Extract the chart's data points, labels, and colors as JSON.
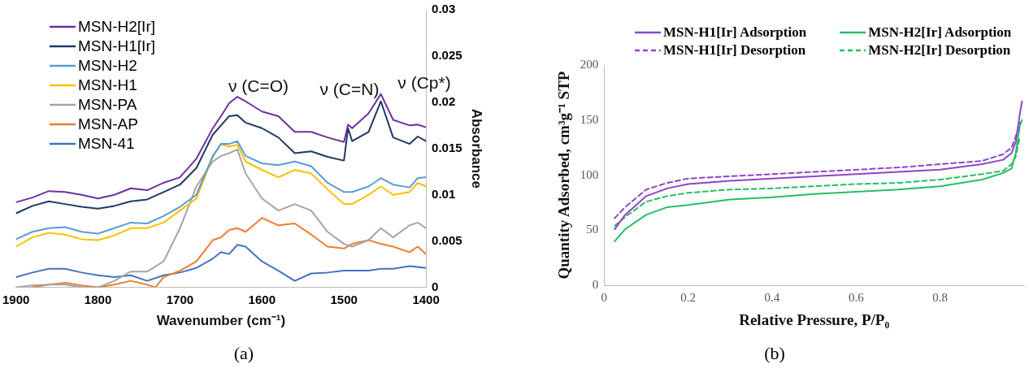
{
  "chart_data": [
    {
      "type": "line",
      "xlabel": "Wavenumber (cm⁻¹)",
      "ylabel": "Absorbance",
      "xlim": [
        1900,
        1400
      ],
      "xticks": [
        1900,
        1800,
        1700,
        1600,
        1500,
        1400
      ],
      "ylim": [
        0,
        0.03
      ],
      "yticks": [
        0,
        0.005,
        0.01,
        0.015,
        0.02,
        0.025,
        0.03
      ],
      "legend": "top left",
      "marker": "none",
      "grid": false,
      "annotations": [
        "ν (C=O)",
        "ν (C=N)",
        "ν (Cp*)",
        "(a)"
      ],
      "series": [
        {
          "name": "MSN-H2[Ir]",
          "color": "#7030a0",
          "x": [
            1900,
            1880,
            1860,
            1840,
            1820,
            1800,
            1780,
            1760,
            1740,
            1720,
            1700,
            1680,
            1660,
            1650,
            1640,
            1630,
            1620,
            1600,
            1580,
            1560,
            1540,
            1520,
            1500,
            1495,
            1490,
            1470,
            1455,
            1440,
            1420,
            1410,
            1400
          ],
          "values": [
            0.0092,
            0.0097,
            0.0104,
            0.0103,
            0.01,
            0.0096,
            0.01,
            0.0107,
            0.0105,
            0.0113,
            0.0119,
            0.0139,
            0.0172,
            0.0185,
            0.0199,
            0.0206,
            0.0201,
            0.019,
            0.0185,
            0.0168,
            0.0168,
            0.0162,
            0.0157,
            0.0176,
            0.0172,
            0.0188,
            0.0209,
            0.0181,
            0.0175,
            0.0176,
            0.0173
          ]
        },
        {
          "name": "MSN-H1[Ir]",
          "color": "#1f3864",
          "x": [
            1900,
            1880,
            1860,
            1840,
            1820,
            1800,
            1780,
            1760,
            1740,
            1720,
            1700,
            1680,
            1660,
            1650,
            1640,
            1630,
            1620,
            1600,
            1580,
            1560,
            1540,
            1520,
            1500,
            1495,
            1490,
            1470,
            1455,
            1440,
            1420,
            1410,
            1400
          ],
          "values": [
            0.008,
            0.0088,
            0.0093,
            0.009,
            0.0087,
            0.0085,
            0.0088,
            0.0093,
            0.0095,
            0.0103,
            0.0111,
            0.0129,
            0.0165,
            0.0175,
            0.0185,
            0.0186,
            0.0178,
            0.0172,
            0.0162,
            0.0145,
            0.0147,
            0.0141,
            0.0137,
            0.0172,
            0.0158,
            0.0168,
            0.0201,
            0.0162,
            0.0155,
            0.0163,
            0.0158
          ]
        },
        {
          "name": "MSN-H2",
          "color": "#5b9bd5",
          "x": [
            1900,
            1880,
            1860,
            1840,
            1820,
            1800,
            1780,
            1760,
            1740,
            1720,
            1700,
            1680,
            1660,
            1650,
            1640,
            1630,
            1620,
            1600,
            1580,
            1560,
            1540,
            1520,
            1500,
            1490,
            1470,
            1455,
            1440,
            1420,
            1410,
            1400
          ],
          "values": [
            0.0052,
            0.006,
            0.0064,
            0.0065,
            0.006,
            0.0058,
            0.0064,
            0.007,
            0.0069,
            0.0077,
            0.0087,
            0.01,
            0.0142,
            0.0155,
            0.0155,
            0.0158,
            0.0142,
            0.0134,
            0.0132,
            0.0136,
            0.0131,
            0.0113,
            0.0103,
            0.0103,
            0.0109,
            0.0118,
            0.0111,
            0.0108,
            0.0118,
            0.0119
          ]
        },
        {
          "name": "MSN-H1",
          "color": "#ffc000",
          "x": [
            1900,
            1880,
            1860,
            1840,
            1820,
            1800,
            1780,
            1760,
            1740,
            1720,
            1700,
            1680,
            1660,
            1650,
            1640,
            1630,
            1620,
            1600,
            1580,
            1560,
            1540,
            1520,
            1500,
            1490,
            1470,
            1455,
            1440,
            1420,
            1410,
            1400
          ],
          "values": [
            0.0044,
            0.0054,
            0.0059,
            0.0057,
            0.0052,
            0.0051,
            0.0056,
            0.0064,
            0.0064,
            0.007,
            0.0083,
            0.0096,
            0.0141,
            0.0155,
            0.0152,
            0.0154,
            0.0136,
            0.0127,
            0.0119,
            0.0127,
            0.0123,
            0.0106,
            0.009,
            0.009,
            0.01,
            0.0109,
            0.01,
            0.0103,
            0.0113,
            0.0109
          ]
        },
        {
          "name": "MSN-PA",
          "color": "#a5a5a5",
          "x": [
            1900,
            1880,
            1860,
            1840,
            1820,
            1800,
            1780,
            1760,
            1740,
            1720,
            1700,
            1680,
            1660,
            1650,
            1640,
            1630,
            1620,
            1600,
            1580,
            1560,
            1540,
            1520,
            1500,
            1490,
            1470,
            1455,
            1440,
            1420,
            1410,
            1400
          ],
          "values": [
            0,
            0.0002,
            0.0003,
            0.0003,
            0,
            0,
            0.0007,
            0.0017,
            0.0017,
            0.0028,
            0.0064,
            0.0109,
            0.0136,
            0.0142,
            0.0145,
            0.0149,
            0.0123,
            0.0096,
            0.0083,
            0.009,
            0.0083,
            0.006,
            0.0047,
            0.0044,
            0.0051,
            0.0064,
            0.0054,
            0.0067,
            0.007,
            0.0064
          ]
        },
        {
          "name": "MSN-AP",
          "color": "#ed7d31",
          "x": [
            1880,
            1860,
            1840,
            1820,
            1800,
            1780,
            1760,
            1740,
            1730,
            1720,
            1700,
            1680,
            1660,
            1650,
            1640,
            1630,
            1620,
            1600,
            1580,
            1560,
            1540,
            1520,
            1500,
            1490,
            1470,
            1455,
            1440,
            1420,
            1410,
            1400
          ],
          "values": [
            0,
            0.0003,
            0.0005,
            0.0002,
            0,
            0.0003,
            0.0007,
            0.0003,
            0,
            0.0011,
            0.0018,
            0.0028,
            0.0051,
            0.0054,
            0.0062,
            0.0064,
            0.006,
            0.0075,
            0.0067,
            0.0069,
            0.0057,
            0.0044,
            0.0042,
            0.0047,
            0.0051,
            0.0047,
            0.0044,
            0.0038,
            0.0044,
            0.0036
          ]
        },
        {
          "name": "MSN-41",
          "color": "#4472c4",
          "x": [
            1900,
            1880,
            1860,
            1840,
            1820,
            1800,
            1780,
            1760,
            1740,
            1720,
            1700,
            1680,
            1660,
            1650,
            1640,
            1630,
            1620,
            1600,
            1580,
            1560,
            1540,
            1520,
            1500,
            1470,
            1455,
            1440,
            1420,
            1400
          ],
          "values": [
            0.0011,
            0.0016,
            0.002,
            0.002,
            0.0016,
            0.0013,
            0.0011,
            0.0013,
            0.0007,
            0.0013,
            0.0016,
            0.0021,
            0.0031,
            0.0038,
            0.0036,
            0.0046,
            0.0044,
            0.0028,
            0.0018,
            0.0007,
            0.0015,
            0.0016,
            0.0018,
            0.0018,
            0.002,
            0.002,
            0.0023,
            0.0021
          ]
        }
      ]
    },
    {
      "type": "line",
      "xlabel": "Relative Pressure, P/P₀",
      "ylabel": "Quantity Adsorbed, cm³g⁻¹ STP",
      "xlim": [
        0,
        1
      ],
      "xticks": [
        0,
        0.2,
        0.4,
        0.6,
        0.8
      ],
      "ylim": [
        0,
        200
      ],
      "yticks": [
        0,
        50,
        100,
        150,
        200
      ],
      "legend": "top",
      "marker": "none",
      "grid": false,
      "annotations": [
        "(b)"
      ],
      "series": [
        {
          "name": "MSN-H1[Ir] Adsorption",
          "color": "#8e44c8",
          "line_style": "solid",
          "x": [
            0.025,
            0.05,
            0.1,
            0.15,
            0.2,
            0.3,
            0.4,
            0.5,
            0.6,
            0.7,
            0.8,
            0.9,
            0.95,
            0.97,
            0.98,
            0.99,
            0.995
          ],
          "values": [
            51,
            64,
            81,
            88,
            92,
            95,
            97,
            99,
            101,
            103,
            105,
            110,
            114,
            120,
            130,
            156,
            167
          ]
        },
        {
          "name": "MSN-H2[Ir] Adsorption",
          "color": "#22c064",
          "line_style": "solid",
          "x": [
            0.025,
            0.05,
            0.1,
            0.15,
            0.2,
            0.3,
            0.4,
            0.5,
            0.6,
            0.7,
            0.8,
            0.9,
            0.95,
            0.97,
            0.98,
            0.99,
            0.995
          ],
          "values": [
            40,
            51,
            64,
            71,
            73,
            78,
            80,
            83,
            85,
            87,
            90,
            96,
            102,
            106,
            120,
            145,
            150
          ]
        },
        {
          "name": "MSN-H1[Ir] Desorption",
          "color": "#8e44c8",
          "line_style": "dashed",
          "x": [
            0.025,
            0.05,
            0.1,
            0.15,
            0.2,
            0.3,
            0.4,
            0.5,
            0.6,
            0.7,
            0.8,
            0.9,
            0.95,
            0.97,
            0.98,
            0.99
          ],
          "values": [
            61,
            71,
            87,
            93,
            97,
            99,
            101,
            103,
            105,
            107,
            110,
            113,
            119,
            125,
            135,
            148
          ]
        },
        {
          "name": "MSN-H2[Ir] Desorption",
          "color": "#22c064",
          "line_style": "dashed",
          "x": [
            0.025,
            0.05,
            0.1,
            0.15,
            0.2,
            0.3,
            0.4,
            0.5,
            0.6,
            0.7,
            0.8,
            0.9,
            0.95,
            0.97,
            0.98,
            0.99
          ],
          "values": [
            54,
            62,
            76,
            81,
            84,
            87,
            88,
            90,
            92,
            93,
            96,
            101,
            104,
            110,
            117,
            135
          ]
        }
      ]
    }
  ]
}
